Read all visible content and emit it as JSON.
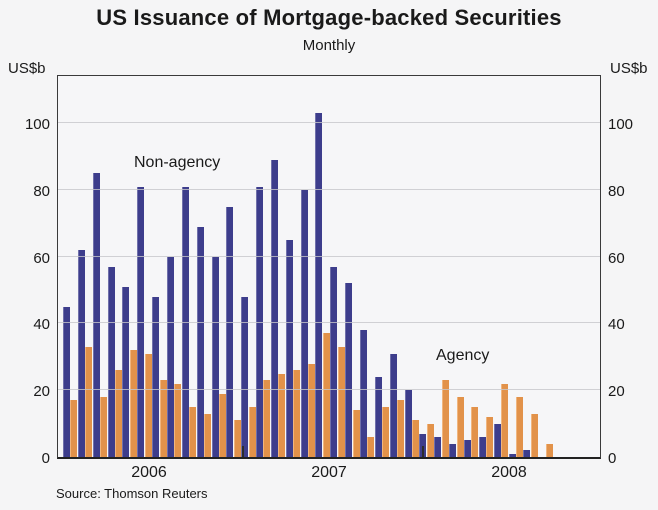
{
  "title": "US Issuance of Mortgage-backed Securities",
  "subtitle": "Monthly",
  "unit_left": "US$b",
  "unit_right": "US$b",
  "source": "Source: Thomson Reuters",
  "labels": {
    "non_agency": "Non-agency",
    "agency": "Agency"
  },
  "colors": {
    "non_agency": "#3d3d8c",
    "agency": "#e2924a",
    "gridline": "#c7c7cb",
    "frame": "#3a3a3a",
    "background": "#f5f5f6"
  },
  "chart_data": {
    "type": "bar",
    "title": "US Issuance of Mortgage-backed Securities",
    "subtitle": "Monthly",
    "ylabel_left": "US$b",
    "ylabel_right": "US$b",
    "ylim": [
      0,
      115
    ],
    "yticks": [
      0,
      20,
      40,
      60,
      80,
      100
    ],
    "grid": true,
    "legend_position": "inline-text-labels",
    "x_year_labels": [
      "2006",
      "2007",
      "2008"
    ],
    "categories": [
      "Jan 2006",
      "Feb 2006",
      "Mar 2006",
      "Apr 2006",
      "May 2006",
      "Jun 2006",
      "Jul 2006",
      "Aug 2006",
      "Sep 2006",
      "Oct 2006",
      "Nov 2006",
      "Dec 2006",
      "Jan 2007",
      "Feb 2007",
      "Mar 2007",
      "Apr 2007",
      "May 2007",
      "Jun 2007",
      "Jul 2007",
      "Aug 2007",
      "Sep 2007",
      "Oct 2007",
      "Nov 2007",
      "Dec 2007",
      "Jan 2008",
      "Feb 2008",
      "Mar 2008",
      "Apr 2008",
      "May 2008",
      "Jun 2008",
      "Jul 2008",
      "Aug 2008",
      "Sep 2008"
    ],
    "series": [
      {
        "name": "Non-agency",
        "color": "#3d3d8c",
        "values": [
          45,
          62,
          85,
          57,
          51,
          81,
          48,
          60,
          81,
          69,
          60,
          75,
          48,
          81,
          89,
          65,
          80,
          103,
          57,
          52,
          38,
          24,
          31,
          20,
          7,
          6,
          4,
          5,
          6,
          10,
          1,
          2,
          0
        ]
      },
      {
        "name": "Agency",
        "color": "#e2924a",
        "values": [
          17,
          33,
          18,
          26,
          32,
          31,
          23,
          22,
          15,
          13,
          19,
          11,
          15,
          23,
          25,
          26,
          28,
          37,
          33,
          14,
          6,
          15,
          17,
          11,
          10,
          23,
          18,
          15,
          12,
          22,
          18,
          13,
          4
        ]
      }
    ],
    "source": "Source: Thomson Reuters"
  }
}
